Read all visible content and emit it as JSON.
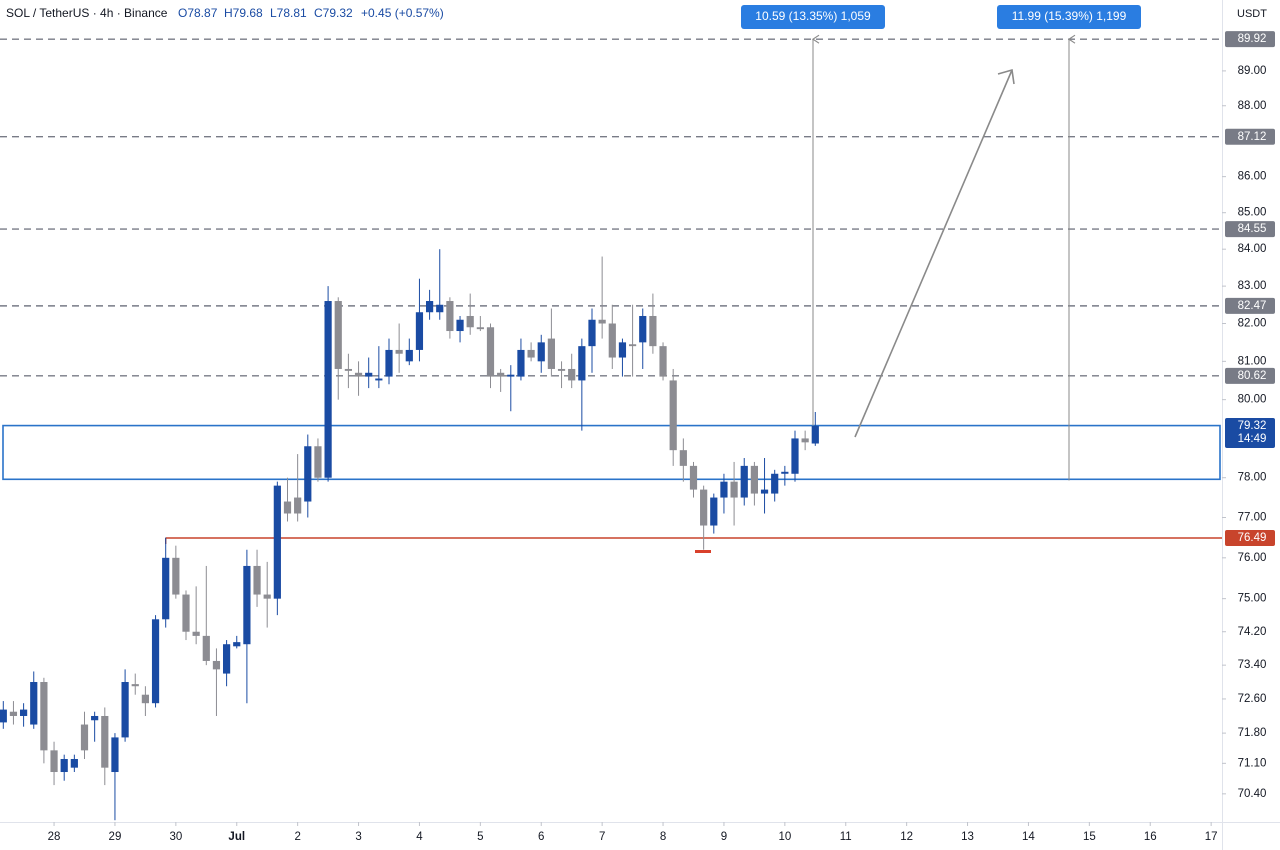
{
  "chart_data": {
    "type": "candlestick",
    "symbol": "SOL / TetherUS · 4h · Binance",
    "ohlc_text": {
      "open": "O78.87",
      "high": "H79.68",
      "low": "L78.81",
      "close": "C79.32",
      "change": "+0.45 (+0.57%)"
    },
    "currency": "USDT",
    "countdown": "14:49",
    "up_color": "#1a4ba3",
    "down_color": "#8c8c92",
    "log_scale": true,
    "ylim": [
      69.76,
      91.07
    ],
    "yticks": [
      {
        "value": 70.4,
        "label": "70.40"
      },
      {
        "value": 71.1,
        "label": "71.10"
      },
      {
        "value": 71.8,
        "label": "71.80"
      },
      {
        "value": 72.6,
        "label": "72.60"
      },
      {
        "value": 73.4,
        "label": "73.40"
      },
      {
        "value": 74.2,
        "label": "74.20"
      },
      {
        "value": 75,
        "label": "75.00"
      },
      {
        "value": 76,
        "label": "76.00"
      },
      {
        "value": 77,
        "label": "77.00"
      },
      {
        "value": 78,
        "label": "78.00"
      },
      {
        "value": 80,
        "label": "80.00"
      },
      {
        "value": 81,
        "label": "81.00"
      },
      {
        "value": 82,
        "label": "82.00"
      },
      {
        "value": 83,
        "label": "83.00"
      },
      {
        "value": 84,
        "label": "84.00"
      },
      {
        "value": 85,
        "label": "85.00"
      },
      {
        "value": 86,
        "label": "86.00"
      },
      {
        "value": 88,
        "label": "88.00"
      },
      {
        "value": 89,
        "label": "89.00"
      }
    ],
    "xlim": [
      -0.325,
      120.07
    ],
    "xticks": [
      {
        "value": 5,
        "label": "28"
      },
      {
        "value": 11,
        "label": "29"
      },
      {
        "value": 17,
        "label": "30"
      },
      {
        "value": 23,
        "label": "Jul"
      },
      {
        "value": 29,
        "label": "2"
      },
      {
        "value": 35,
        "label": "3"
      },
      {
        "value": 41,
        "label": "4"
      },
      {
        "value": 47,
        "label": "5"
      },
      {
        "value": 53,
        "label": "6"
      },
      {
        "value": 59,
        "label": "7"
      },
      {
        "value": 65,
        "label": "8"
      },
      {
        "value": 71,
        "label": "9"
      },
      {
        "value": 77,
        "label": "10"
      },
      {
        "value": 83,
        "label": "11"
      },
      {
        "value": 89,
        "label": "12"
      },
      {
        "value": 95,
        "label": "13"
      },
      {
        "value": 101,
        "label": "14"
      },
      {
        "value": 107,
        "label": "15"
      },
      {
        "value": 113,
        "label": "16"
      },
      {
        "value": 119,
        "label": "17"
      }
    ],
    "candles": [
      [
        72.05,
        72.55,
        71.9,
        72.35
      ],
      [
        72.3,
        72.55,
        72.0,
        72.2
      ],
      [
        72.2,
        72.5,
        71.95,
        72.35
      ],
      [
        72.0,
        73.25,
        71.9,
        73.0
      ],
      [
        73.0,
        73.1,
        71.1,
        71.4
      ],
      [
        71.4,
        71.6,
        70.6,
        70.9
      ],
      [
        70.9,
        71.3,
        70.7,
        71.2
      ],
      [
        71.0,
        71.3,
        70.9,
        71.2
      ],
      [
        72.0,
        72.3,
        71.2,
        71.4
      ],
      [
        72.1,
        72.3,
        71.6,
        72.2
      ],
      [
        72.2,
        72.4,
        70.6,
        71.0
      ],
      [
        70.9,
        71.8,
        69.8,
        71.7
      ],
      [
        71.7,
        73.3,
        71.6,
        73.0
      ],
      [
        72.95,
        73.2,
        72.7,
        72.9
      ],
      [
        72.7,
        72.9,
        72.2,
        72.5
      ],
      [
        72.5,
        74.6,
        72.4,
        74.5
      ],
      [
        74.5,
        76.5,
        74.3,
        76.0
      ],
      [
        76.0,
        76.3,
        75.0,
        75.1
      ],
      [
        75.1,
        75.2,
        74.0,
        74.2
      ],
      [
        74.2,
        75.3,
        73.9,
        74.1
      ],
      [
        74.1,
        75.8,
        73.4,
        73.5
      ],
      [
        73.5,
        73.8,
        72.2,
        73.3
      ],
      [
        73.2,
        74.0,
        72.9,
        73.9
      ],
      [
        73.85,
        74.1,
        73.8,
        73.95
      ],
      [
        73.9,
        76.2,
        72.5,
        75.8
      ],
      [
        75.8,
        76.2,
        74.8,
        75.1
      ],
      [
        75.1,
        75.9,
        74.3,
        75.0
      ],
      [
        75.0,
        77.9,
        74.6,
        77.8
      ],
      [
        77.4,
        78.0,
        76.9,
        77.1
      ],
      [
        77.5,
        78.6,
        76.9,
        77.1
      ],
      [
        77.4,
        79.1,
        77.0,
        78.8
      ],
      [
        78.8,
        79.0,
        77.9,
        78.0
      ],
      [
        78.0,
        83.0,
        77.9,
        82.6
      ],
      [
        82.6,
        82.7,
        80.0,
        80.8
      ],
      [
        80.8,
        81.2,
        80.3,
        80.75
      ],
      [
        80.7,
        81.0,
        80.1,
        80.6
      ],
      [
        80.6,
        81.1,
        80.3,
        80.7
      ],
      [
        80.5,
        81.4,
        80.3,
        80.55
      ],
      [
        80.6,
        81.6,
        80.4,
        81.3
      ],
      [
        81.3,
        82.0,
        80.7,
        81.2
      ],
      [
        81.0,
        81.6,
        80.9,
        81.3
      ],
      [
        81.3,
        83.2,
        81.0,
        82.3
      ],
      [
        82.3,
        82.9,
        82.1,
        82.6
      ],
      [
        82.3,
        84.0,
        82.1,
        82.5
      ],
      [
        82.6,
        82.7,
        81.6,
        81.8
      ],
      [
        81.8,
        82.2,
        81.5,
        82.1
      ],
      [
        82.2,
        82.8,
        81.7,
        81.9
      ],
      [
        81.9,
        82.2,
        81.8,
        81.85
      ],
      [
        81.9,
        82.0,
        80.3,
        80.6
      ],
      [
        80.7,
        80.8,
        80.2,
        80.6
      ],
      [
        80.6,
        80.9,
        79.7,
        80.65
      ],
      [
        80.6,
        81.6,
        80.5,
        81.3
      ],
      [
        81.3,
        81.5,
        81.0,
        81.1
      ],
      [
        81.0,
        81.7,
        80.7,
        81.5
      ],
      [
        81.6,
        82.4,
        80.6,
        80.8
      ],
      [
        80.8,
        81.0,
        80.3,
        80.75
      ],
      [
        80.8,
        81.2,
        80.3,
        80.5
      ],
      [
        80.5,
        81.6,
        79.2,
        81.4
      ],
      [
        81.4,
        82.4,
        80.7,
        82.1
      ],
      [
        82.1,
        83.8,
        81.6,
        82.0
      ],
      [
        82.0,
        82.5,
        80.8,
        81.1
      ],
      [
        81.1,
        81.6,
        80.6,
        81.5
      ],
      [
        81.45,
        82.5,
        80.6,
        81.4
      ],
      [
        81.5,
        82.4,
        80.8,
        82.2
      ],
      [
        82.2,
        82.8,
        81.2,
        81.4
      ],
      [
        81.4,
        81.5,
        80.5,
        80.6
      ],
      [
        80.5,
        80.8,
        78.3,
        78.7
      ],
      [
        78.7,
        79.0,
        77.9,
        78.3
      ],
      [
        78.3,
        78.4,
        77.5,
        77.7
      ],
      [
        77.7,
        77.8,
        76.2,
        76.8
      ],
      [
        76.8,
        77.6,
        76.6,
        77.5
      ],
      [
        77.5,
        78.1,
        77.1,
        77.9
      ],
      [
        77.9,
        78.4,
        76.8,
        77.5
      ],
      [
        77.5,
        78.5,
        77.3,
        78.3
      ],
      [
        78.3,
        78.4,
        77.3,
        77.6
      ],
      [
        77.6,
        78.5,
        77.1,
        77.7
      ],
      [
        77.6,
        78.2,
        77.4,
        78.1
      ],
      [
        78.1,
        78.3,
        77.8,
        78.15
      ],
      [
        78.1,
        79.2,
        77.9,
        79.0
      ],
      [
        79.0,
        79.2,
        78.7,
        78.9
      ],
      [
        78.87,
        79.68,
        78.81,
        79.32
      ]
    ],
    "levels": [
      89.92,
      87.12,
      84.55,
      82.47,
      80.62
    ],
    "level_color": "#787b86",
    "support": {
      "value": 76.49,
      "from": 16,
      "color": "#c8442c"
    },
    "zone": {
      "low": 77.96,
      "high": 79.33,
      "color": "#2a73c9"
    },
    "measurements": [
      {
        "label": "10.59 (13.35%) 1,059",
        "from": 79.33,
        "to": 89.92
      },
      {
        "label": "11.99 (15.39%) 1,199",
        "from": 77.93,
        "to": 89.92
      }
    ],
    "measure_color": "#2a7de1"
  }
}
